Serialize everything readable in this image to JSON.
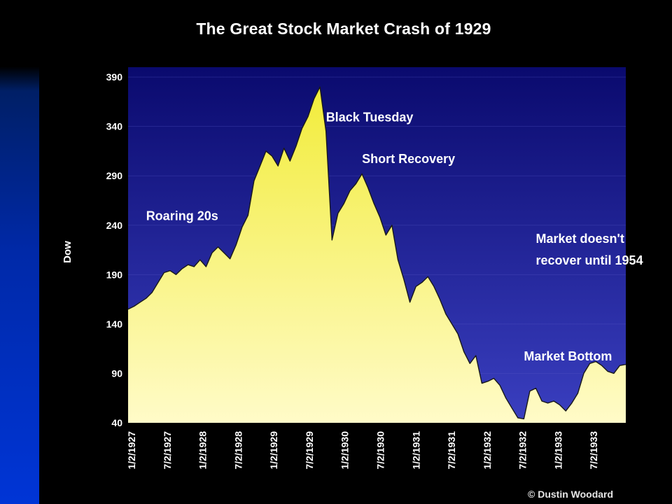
{
  "chart_data": {
    "type": "area",
    "title": "The Great Stock Market Crash of 1929",
    "xlabel": "",
    "ylabel": "Dow",
    "ylim": [
      40,
      400
    ],
    "y_ticks": [
      40,
      90,
      140,
      190,
      240,
      290,
      340,
      390
    ],
    "x_tick_labels": [
      "1/2/1927",
      "7/2/1927",
      "1/2/1928",
      "7/2/1928",
      "1/2/1929",
      "7/2/1929",
      "1/2/1930",
      "7/2/1930",
      "1/2/1931",
      "7/2/1931",
      "1/2/1932",
      "7/2/1932",
      "1/2/1933",
      "7/2/1933"
    ],
    "grid": true,
    "series": [
      {
        "x": [
          "1/1927",
          "2/1927",
          "3/1927",
          "4/1927",
          "5/1927",
          "6/1927",
          "7/1927",
          "8/1927",
          "9/1927",
          "10/1927",
          "11/1927",
          "12/1927",
          "1/1928",
          "2/1928",
          "3/1928",
          "4/1928",
          "5/1928",
          "6/1928",
          "7/1928",
          "8/1928",
          "9/1928",
          "10/1928",
          "11/1928",
          "12/1928",
          "1/1929",
          "2/1929",
          "3/1929",
          "4/1929",
          "5/1929",
          "6/1929",
          "7/1929",
          "8/1929",
          "9/1929",
          "10/1929",
          "11/1929",
          "12/1929",
          "1/1930",
          "2/1930",
          "3/1930",
          "4/1930",
          "5/1930",
          "6/1930",
          "7/1930",
          "8/1930",
          "9/1930",
          "10/1930",
          "11/1930",
          "12/1930",
          "1/1931",
          "2/1931",
          "3/1931",
          "4/1931",
          "5/1931",
          "6/1931",
          "7/1931",
          "8/1931",
          "9/1931",
          "10/1931",
          "11/1931",
          "12/1931",
          "1/1932",
          "2/1932",
          "3/1932",
          "4/1932",
          "5/1932",
          "6/1932",
          "7/1932",
          "8/1932",
          "9/1932",
          "10/1932",
          "11/1932",
          "12/1932",
          "1/1933",
          "2/1933",
          "3/1933",
          "4/1933",
          "5/1933",
          "6/1933",
          "7/1933",
          "8/1933",
          "9/1933",
          "10/1933",
          "11/1933",
          "12/1933"
        ],
        "values": [
          155,
          158,
          162,
          166,
          172,
          182,
          192,
          194,
          190,
          196,
          200,
          198,
          205,
          198,
          212,
          218,
          212,
          206,
          220,
          238,
          250,
          285,
          300,
          315,
          310,
          300,
          318,
          305,
          320,
          338,
          350,
          368,
          380,
          335,
          225,
          252,
          262,
          275,
          282,
          292,
          278,
          262,
          248,
          230,
          240,
          205,
          185,
          162,
          178,
          182,
          188,
          178,
          165,
          150,
          140,
          130,
          112,
          100,
          108,
          80,
          82,
          85,
          78,
          65,
          55,
          45,
          44,
          72,
          75,
          62,
          60,
          62,
          58,
          52,
          60,
          70,
          90,
          100,
          102,
          98,
          92,
          90,
          98,
          99
        ]
      }
    ],
    "annotations": [
      {
        "text": "Roaring 20s",
        "x": "4/1927",
        "y": 245
      },
      {
        "text": "Black Tuesday",
        "x": "10/1929",
        "y": 345
      },
      {
        "text": "Short Recovery",
        "x": "4/1930",
        "y": 303
      },
      {
        "text": "Market doesn't",
        "x": "9/1932",
        "y": 222
      },
      {
        "text": "recover until 1954",
        "x": "9/1932",
        "y": 200
      },
      {
        "text": "Market Bottom",
        "x": "7/1932",
        "y": 103
      }
    ]
  },
  "colors": {
    "plot_top": "#0a0a6e",
    "plot_bottom": "#3a3fc0",
    "area_top": "#f2ec3a",
    "area_bottom": "#fffbc8",
    "outline": "#1a1a1a"
  },
  "credit": "© Dustin Woodard"
}
